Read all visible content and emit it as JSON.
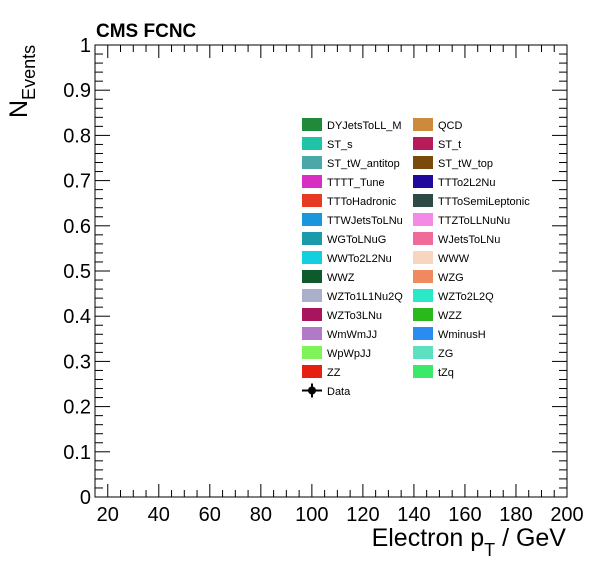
{
  "chart_data": {
    "type": "bar",
    "title": "CMS FCNC",
    "xlabel": "Electron p",
    "xlabel_subscript": "T",
    "xlabel_unit": " / GeV",
    "ylabel": "N",
    "ylabel_subscript": "Events",
    "xlim": [
      15,
      200
    ],
    "ylim": [
      0,
      1
    ],
    "x_ticks": [
      20,
      40,
      60,
      80,
      100,
      120,
      140,
      160,
      180,
      200
    ],
    "y_ticks": [
      0,
      0.1,
      0.2,
      0.3,
      0.4,
      0.5,
      0.6,
      0.7,
      0.8,
      0.9,
      1
    ],
    "y_tick_labels": [
      "0",
      "0.1",
      "0.2",
      "0.3",
      "0.4",
      "0.5",
      "0.6",
      "0.7",
      "0.8",
      "0.9",
      "1"
    ],
    "x_tick_labels": [
      "20",
      "40",
      "60",
      "80",
      "100",
      "120",
      "140",
      "160",
      "180",
      "200"
    ],
    "grid": false,
    "legend_placement": "center-right",
    "series": [
      {
        "name": "DYJetsToLL_M",
        "color": "#1e8a3a",
        "values": []
      },
      {
        "name": "QCD",
        "color": "#cc8a3c",
        "values": []
      },
      {
        "name": "ST_s",
        "color": "#1fc4a8",
        "values": []
      },
      {
        "name": "ST_t",
        "color": "#b71c5a",
        "values": []
      },
      {
        "name": "ST_tW_antitop",
        "color": "#4aa8a8",
        "values": []
      },
      {
        "name": "ST_tW_top",
        "color": "#7a4a0a",
        "values": []
      },
      {
        "name": "TTTT_Tune",
        "color": "#d62fc1",
        "values": []
      },
      {
        "name": "TTTo2L2Nu",
        "color": "#1f0a9c",
        "values": []
      },
      {
        "name": "TTToHadronic",
        "color": "#e63a22",
        "values": []
      },
      {
        "name": "TTToSemiLeptonic",
        "color": "#2e4a44",
        "values": []
      },
      {
        "name": "TTWJetsToLNu",
        "color": "#1a96dc",
        "values": []
      },
      {
        "name": "TTZToLLNuNu",
        "color": "#f28ae6",
        "values": []
      },
      {
        "name": "WGToLNuG",
        "color": "#1a9aaa",
        "values": []
      },
      {
        "name": "WJetsToLNu",
        "color": "#f06a9a",
        "values": []
      },
      {
        "name": "WWTo2L2Nu",
        "color": "#12d0e0",
        "values": []
      },
      {
        "name": "WWW",
        "color": "#f7d6c0",
        "values": []
      },
      {
        "name": "WWZ",
        "color": "#0e5a2a",
        "values": []
      },
      {
        "name": "WZG",
        "color": "#f0895e",
        "values": []
      },
      {
        "name": "WZTo1L1Nu2Q",
        "color": "#aab0cc",
        "values": []
      },
      {
        "name": "WZTo2L2Q",
        "color": "#2ae8c8",
        "values": []
      },
      {
        "name": "WZTo3LNu",
        "color": "#a8145e",
        "values": []
      },
      {
        "name": "WZZ",
        "color": "#2ab81a",
        "values": []
      },
      {
        "name": "WmWmJJ",
        "color": "#b07ac8",
        "values": []
      },
      {
        "name": "WminusH",
        "color": "#2a8cf0",
        "values": []
      },
      {
        "name": "WpWpJJ",
        "color": "#80f25a",
        "values": []
      },
      {
        "name": "ZG",
        "color": "#5ce0c0",
        "values": []
      },
      {
        "name": "ZZ",
        "color": "#e62010",
        "values": []
      },
      {
        "name": "tZq",
        "color": "#3ae86a",
        "values": []
      }
    ],
    "data_label": "Data"
  }
}
